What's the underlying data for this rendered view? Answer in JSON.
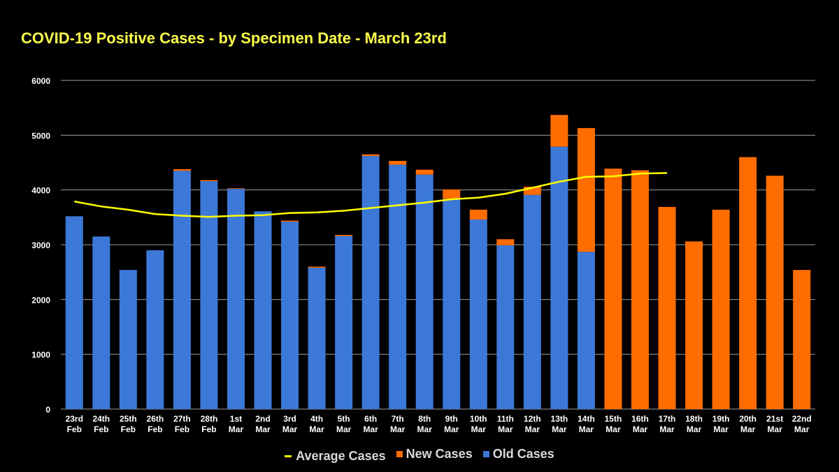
{
  "chart_data": {
    "type": "bar",
    "title": "COVID-19 Positive Cases - by Specimen Date - March 23rd",
    "xlabel": "",
    "ylabel": "",
    "ylim": [
      0,
      6000
    ],
    "yticks": [
      0,
      1000,
      2000,
      3000,
      4000,
      5000,
      6000
    ],
    "grid": true,
    "stacked": true,
    "legend_position": "bottom",
    "categories": [
      [
        "23rd",
        "Feb"
      ],
      [
        "24th",
        "Feb"
      ],
      [
        "25th",
        "Feb"
      ],
      [
        "26th",
        "Feb"
      ],
      [
        "27th",
        "Feb"
      ],
      [
        "28th",
        "Feb"
      ],
      [
        "1st",
        "Mar"
      ],
      [
        "2nd",
        "Mar"
      ],
      [
        "3rd",
        "Mar"
      ],
      [
        "4th",
        "Mar"
      ],
      [
        "5th",
        "Mar"
      ],
      [
        "6th",
        "Mar"
      ],
      [
        "7th",
        "Mar"
      ],
      [
        "8th",
        "Mar"
      ],
      [
        "9th",
        "Mar"
      ],
      [
        "10th",
        "Mar"
      ],
      [
        "11th",
        "Mar"
      ],
      [
        "12th",
        "Mar"
      ],
      [
        "13th",
        "Mar"
      ],
      [
        "14th",
        "Mar"
      ],
      [
        "15th",
        "Mar"
      ],
      [
        "16th",
        "Mar"
      ],
      [
        "17th",
        "Mar"
      ],
      [
        "18th",
        "Mar"
      ],
      [
        "19th",
        "Mar"
      ],
      [
        "20th",
        "Mar"
      ],
      [
        "21st",
        "Mar"
      ],
      [
        "22nd",
        "Mar"
      ]
    ],
    "series": [
      {
        "name": "Old Cases",
        "kind": "bar",
        "color": "#3c78d8",
        "values": [
          3520,
          3150,
          2540,
          2900,
          4350,
          4160,
          4020,
          3610,
          3420,
          2580,
          3160,
          4620,
          4460,
          4280,
          3840,
          3460,
          2990,
          3910,
          4790,
          2870,
          0,
          0,
          0,
          0,
          0,
          0,
          0,
          0
        ]
      },
      {
        "name": "New Cases",
        "kind": "bar",
        "color": "#ff6d01",
        "values": [
          0,
          0,
          0,
          0,
          30,
          20,
          10,
          0,
          20,
          20,
          20,
          30,
          70,
          90,
          170,
          180,
          110,
          150,
          580,
          2260,
          4390,
          4360,
          3690,
          3060,
          3640,
          4600,
          4260,
          2540
        ]
      },
      {
        "name": "Average Cases",
        "kind": "line",
        "color": "#ffff00",
        "values": [
          3790,
          3700,
          3640,
          3560,
          3530,
          3510,
          3530,
          3540,
          3580,
          3590,
          3620,
          3670,
          3720,
          3770,
          3830,
          3860,
          3930,
          4040,
          4150,
          4240,
          4250,
          4300,
          4310,
          null,
          null,
          null,
          null,
          null
        ]
      }
    ]
  },
  "legend": {
    "items": [
      {
        "label": "Average Cases",
        "color": "#ffff00",
        "shape": "line"
      },
      {
        "label": "New Cases",
        "color": "#ff6d01",
        "shape": "box"
      },
      {
        "label": "Old Cases",
        "color": "#3c78d8",
        "shape": "box"
      }
    ]
  }
}
